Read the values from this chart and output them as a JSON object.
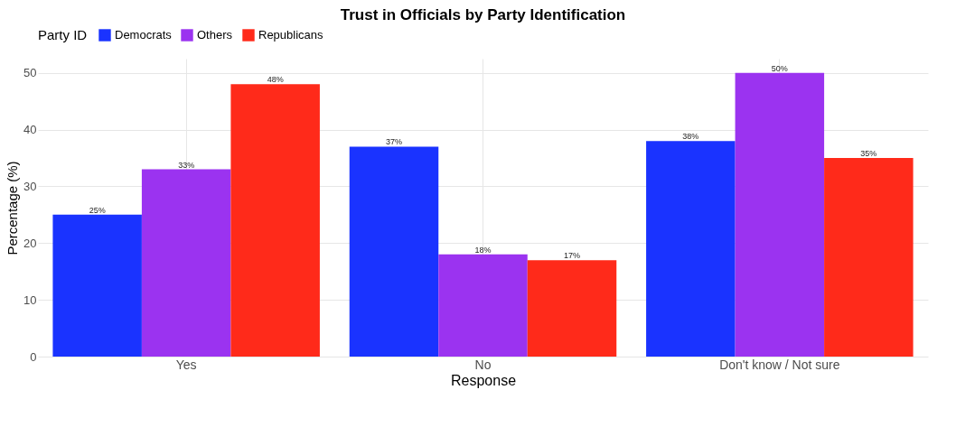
{
  "chart_data": {
    "type": "bar",
    "title": "Trust in Officials by Party Identification",
    "xlabel": "Response",
    "ylabel": "Percentage (%)",
    "legend_title": "Party ID",
    "categories": [
      "Yes",
      "No",
      "Don't know / Not sure"
    ],
    "series": [
      {
        "name": "Democrats",
        "color": "#1a33ff",
        "values": [
          25,
          37,
          38
        ],
        "value_labels": [
          "25%",
          "37%",
          "38%"
        ]
      },
      {
        "name": "Others",
        "color": "#9b33f0",
        "values": [
          33,
          18,
          50
        ],
        "value_labels": [
          "33%",
          "18%",
          "50%"
        ]
      },
      {
        "name": "Republicans",
        "color": "#ff2a1a",
        "values": [
          48,
          17,
          35
        ],
        "value_labels": [
          "48%",
          "17%",
          "35%"
        ]
      }
    ],
    "ylim": [
      0,
      52.5
    ],
    "yticks": [
      0,
      10,
      20,
      30,
      40,
      50
    ],
    "grid": true,
    "legend": "top"
  }
}
